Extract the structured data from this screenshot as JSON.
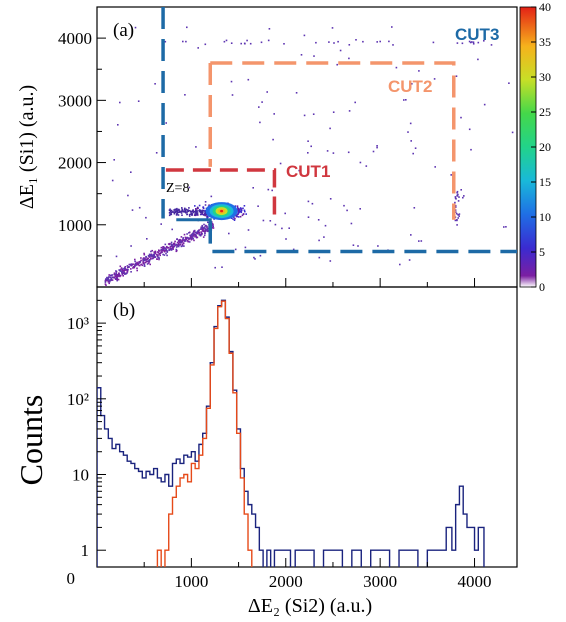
{
  "chart_data": [
    {
      "type": "scatter",
      "panel_label": "(a)",
      "subtype": "2D histogram (dE-E)",
      "xlabel": "ΔE₂ (Si2) (a.u.)",
      "ylabel": "ΔE₁ (Si1) (a.u.)",
      "xlim": [
        0,
        4450
      ],
      "ylim": [
        0,
        4500
      ],
      "yticks": [
        "1000",
        "2000",
        "3000",
        "4000"
      ],
      "colorbar": {
        "range": [
          0,
          40
        ],
        "ticks": [
          "0",
          "5",
          "10",
          "15",
          "20",
          "25",
          "30",
          "35",
          "40"
        ],
        "colors": [
          "#ffffff",
          "#6a0dad",
          "#3a2bd1",
          "#1f4fe0",
          "#1f8fe8",
          "#19c3d6",
          "#22d39a",
          "#2ad36a",
          "#6fd93a",
          "#c8e02a",
          "#f5d020",
          "#f7a21a",
          "#f26a18",
          "#e23016"
        ]
      },
      "annotation": "Z=8",
      "cuts": [
        {
          "name": "CUT1",
          "color": "#d0373f",
          "x": [
            730,
            1880
          ],
          "y": [
            1100,
            1880
          ]
        },
        {
          "name": "CUT2",
          "color": "#f4956c",
          "x": [
            1200,
            3780
          ],
          "y": [
            1080,
            3600
          ]
        },
        {
          "name": "CUT3",
          "color": "#1d6aa6",
          "x": [
            700,
            4450
          ],
          "y": [
            570,
            4500
          ]
        }
      ],
      "clusters": [
        {
          "name": "Z=8 peak",
          "x": 1320,
          "y": 1220,
          "max_counts": 40
        }
      ]
    },
    {
      "type": "line",
      "panel_label": "(b)",
      "xlabel": "ΔE₂ (Si2) (a.u.)",
      "ylabel": "Counts",
      "xlim": [
        0,
        4450
      ],
      "ylog": true,
      "yticks": [
        "1",
        "10",
        "10²",
        "10³"
      ],
      "extra_ytick": "0",
      "xticks": [
        "1000",
        "2000",
        "3000",
        "4000"
      ],
      "series": [
        {
          "color": "#1a237e",
          "x": [
            0,
            40,
            80,
            120,
            160,
            200,
            240,
            280,
            320,
            360,
            400,
            440,
            480,
            520,
            560,
            600,
            640,
            680,
            720,
            760,
            800,
            840,
            880,
            920,
            960,
            1000,
            1040,
            1080,
            1120,
            1160,
            1200,
            1240,
            1280,
            1320,
            1360,
            1400,
            1440,
            1480,
            1520,
            1560,
            1600,
            1640,
            1680,
            1720,
            1760,
            1800,
            1840,
            1880,
            1920,
            1960,
            2000,
            2050,
            2100,
            2200,
            2300,
            2400,
            2500,
            2600,
            2700,
            2800,
            2900,
            3000,
            3100,
            3200,
            3300,
            3400,
            3500,
            3600,
            3700,
            3760,
            3800,
            3840,
            3880,
            3920,
            3960,
            4000,
            4040,
            4100
          ],
          "y": [
            140,
            60,
            40,
            30,
            22,
            25,
            20,
            18,
            15,
            14,
            12,
            11,
            9,
            11,
            10,
            12,
            9,
            8,
            10,
            7,
            14,
            16,
            14,
            18,
            17,
            20,
            15,
            25,
            35,
            80,
            300,
            900,
            1700,
            2000,
            1200,
            420,
            130,
            40,
            12,
            6,
            4,
            3,
            2,
            1,
            0,
            1,
            0,
            1,
            1,
            1,
            1,
            0,
            1,
            1,
            0,
            1,
            1,
            0,
            1,
            0,
            1,
            1,
            0,
            1,
            1,
            0,
            1,
            1,
            2,
            1,
            4,
            7,
            3,
            2,
            2,
            1,
            2,
            0
          ]
        },
        {
          "color": "#e64a19",
          "x": [
            600,
            640,
            680,
            720,
            760,
            800,
            840,
            880,
            920,
            960,
            1000,
            1040,
            1080,
            1120,
            1160,
            1200,
            1240,
            1280,
            1320,
            1360,
            1400,
            1440,
            1480,
            1520,
            1560,
            1600,
            1640
          ],
          "y": [
            0,
            1,
            0,
            1,
            3,
            5,
            7,
            9,
            10,
            8,
            14,
            12,
            18,
            30,
            75,
            280,
            850,
            1650,
            1950,
            1150,
            400,
            120,
            35,
            9,
            3,
            1,
            0
          ]
        }
      ]
    }
  ]
}
